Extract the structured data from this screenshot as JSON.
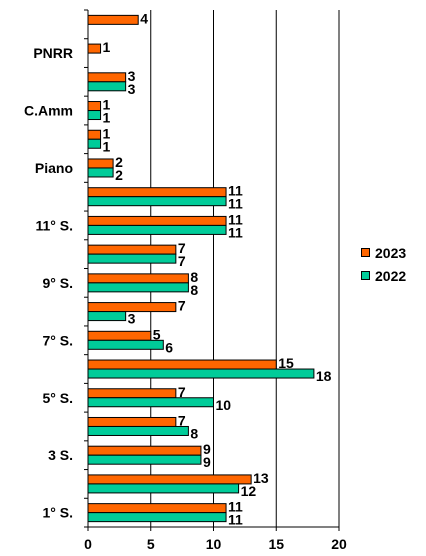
{
  "chart_data": {
    "type": "bar",
    "orientation": "horizontal",
    "categories": [
      "1° S.",
      "",
      "3 S.",
      "",
      "5° S.",
      "",
      "7° S.",
      "",
      "9° S.",
      "",
      "11° S.",
      "",
      "Piano",
      "",
      "C.Amm",
      "",
      "PNRR",
      ""
    ],
    "series": [
      {
        "name": "2023",
        "color": "#ff6600",
        "values": [
          11,
          13,
          9,
          7,
          7,
          15,
          5,
          7,
          8,
          7,
          11,
          11,
          2,
          1,
          1,
          3,
          1,
          4
        ]
      },
      {
        "name": "2022",
        "color": "#00cc99",
        "values": [
          11,
          12,
          9,
          8,
          10,
          18,
          6,
          3,
          8,
          7,
          11,
          11,
          2,
          1,
          1,
          3,
          null,
          null
        ]
      }
    ],
    "xlim": [
      0,
      20
    ],
    "x_ticks": [
      "0",
      "5",
      "10",
      "15",
      "20"
    ],
    "grid": "vertical",
    "legend_position": "right"
  }
}
